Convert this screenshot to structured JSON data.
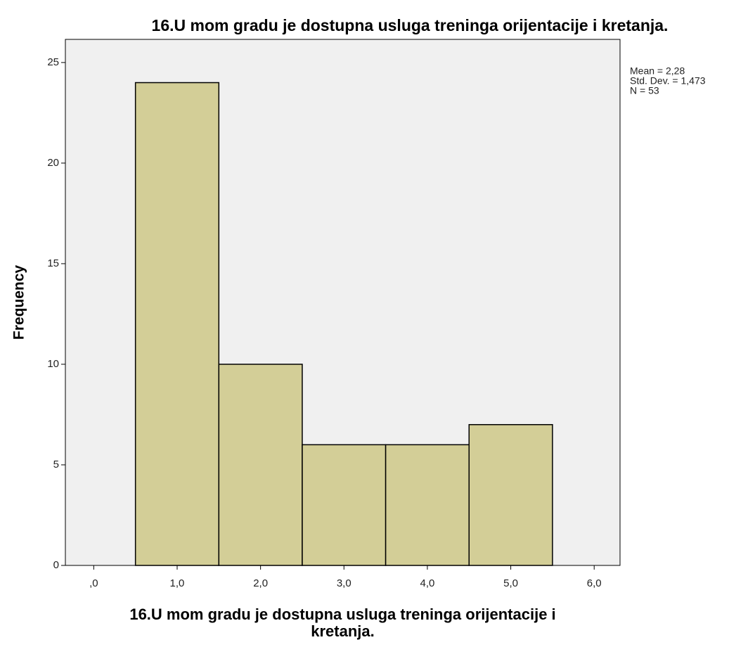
{
  "chart_data": {
    "type": "histogram",
    "title": "16.U mom gradu je dostupna usluga treninga orijentacije i kretanja.",
    "xlabel": "16.U mom gradu je dostupna usluga treninga orijentacije i kretanja.",
    "ylabel": "Frequency",
    "bins": [
      0.5,
      1.5,
      2.5,
      3.5,
      4.5,
      5.5
    ],
    "counts": [
      24,
      10,
      6,
      6,
      7
    ],
    "color": "#d3ce97",
    "xlim": [
      -0.34,
      6.31
    ],
    "ylim": [
      0,
      26.15
    ],
    "xticks": [
      {
        "value": 0,
        "label": ",0"
      },
      {
        "value": 1,
        "label": "1,0"
      },
      {
        "value": 2,
        "label": "2,0"
      },
      {
        "value": 3,
        "label": "3,0"
      },
      {
        "value": 4,
        "label": "4,0"
      },
      {
        "value": 5,
        "label": "5,0"
      },
      {
        "value": 6,
        "label": "6,0"
      }
    ],
    "yticks": [
      0,
      5,
      10,
      15,
      20,
      25
    ],
    "stats": [
      "Mean = 2,28",
      "Std. Dev. = 1,473",
      "N = 53"
    ]
  }
}
